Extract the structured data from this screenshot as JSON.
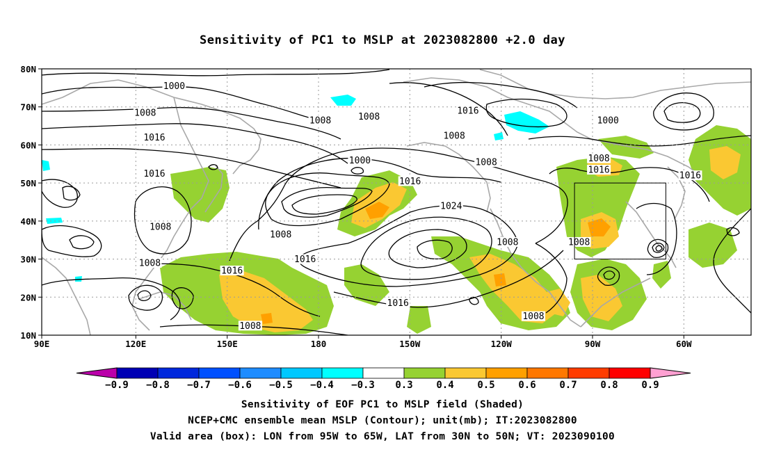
{
  "title": "Sensitivity of PC1 to MSLP at 2023082800 +2.0 day",
  "axes": {
    "lat_ticks": [
      "80N",
      "70N",
      "60N",
      "50N",
      "40N",
      "30N",
      "20N",
      "10N"
    ],
    "lon_ticks": [
      "90E",
      "120E",
      "150E",
      "180",
      "150W",
      "120W",
      "90W",
      "60W"
    ]
  },
  "contour_labels": [
    {
      "text": "1000",
      "lon": 133.5,
      "lat": 75.5
    },
    {
      "text": "1008",
      "lon": 124,
      "lat": 68.5
    },
    {
      "text": "1008",
      "lon": 181.5,
      "lat": 66.5
    },
    {
      "text": "1008",
      "lon": 197.5,
      "lat": 67.5
    },
    {
      "text": "1016",
      "lon": 230,
      "lat": 69
    },
    {
      "text": "1000",
      "lon": 276,
      "lat": 66.5
    },
    {
      "text": "1016",
      "lon": 127,
      "lat": 62
    },
    {
      "text": "1008",
      "lon": 225.5,
      "lat": 62.5
    },
    {
      "text": "1008",
      "lon": 273,
      "lat": 56.5
    },
    {
      "text": "1000",
      "lon": 194.5,
      "lat": 56
    },
    {
      "text": "1008",
      "lon": 236,
      "lat": 55.5
    },
    {
      "text": "1016",
      "lon": 273,
      "lat": 53.5
    },
    {
      "text": "1016",
      "lon": 127,
      "lat": 52.5
    },
    {
      "text": "1016",
      "lon": 303,
      "lat": 52
    },
    {
      "text": "1016",
      "lon": 211,
      "lat": 50.5
    },
    {
      "text": "1024",
      "lon": 224.5,
      "lat": 44
    },
    {
      "text": "1008",
      "lon": 129,
      "lat": 38.5
    },
    {
      "text": "1008",
      "lon": 168.5,
      "lat": 36.5
    },
    {
      "text": "1008",
      "lon": 243,
      "lat": 34.5
    },
    {
      "text": "1008",
      "lon": 266.5,
      "lat": 34.5
    },
    {
      "text": "1016",
      "lon": 176.5,
      "lat": 30
    },
    {
      "text": "1008",
      "lon": 125.5,
      "lat": 29
    },
    {
      "text": "1016",
      "lon": 152.5,
      "lat": 27
    },
    {
      "text": "1016",
      "lon": 207,
      "lat": 18.5
    },
    {
      "text": "1008",
      "lon": 158.5,
      "lat": 12.5
    },
    {
      "text": "1008",
      "lon": 251.5,
      "lat": 15
    }
  ],
  "valid_area": {
    "lon_min": -95,
    "lon_max": -65,
    "lat_min": 30,
    "lat_max": 50
  },
  "colorbar": {
    "labels": [
      "−0.9",
      "−0.8",
      "−0.7",
      "−0.6",
      "−0.5",
      "−0.4",
      "−0.3",
      "0.3",
      "0.4",
      "0.5",
      "0.6",
      "0.7",
      "0.8",
      "0.9"
    ],
    "colors": [
      "#bb00aa",
      "#0000b4",
      "#0028dc",
      "#0050ff",
      "#1e8cff",
      "#00c8ff",
      "#00ffff",
      "#ffffff",
      "#96d232",
      "#fac832",
      "#ffa000",
      "#ff7800",
      "#ff3c00",
      "#ff0000",
      "#ffa0d2"
    ]
  },
  "footer": {
    "line1": "Sensitivity of EOF PC1 to MSLP field (Shaded)",
    "line2": "NCEP+CMC ensemble mean MSLP (Contour); unit(mb); IT:2023082800",
    "line3": "Valid area (box): LON from 95W to 65W, LAT from 30N to 50N; VT: 2023090100"
  }
}
